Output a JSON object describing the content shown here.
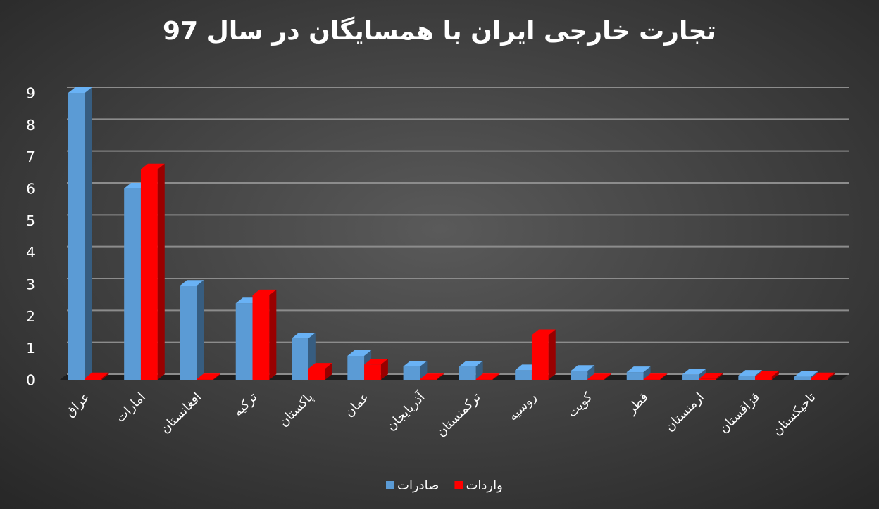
{
  "chart_data": {
    "type": "bar3d",
    "title": "تجارت خارجی ایران با همسایگان در سال 97",
    "categories": [
      "عراق",
      "امارات",
      "افغانستان",
      "ترکیه",
      "پاکستان",
      "عمان",
      "آذربایجان",
      "ترکمنستان",
      "روسیه",
      "کویت",
      "قطر",
      "ارمنستان",
      "قزاقستان",
      "تاجیکستان"
    ],
    "series": [
      {
        "name": "صادرات",
        "color": "#5b9bd5",
        "values": [
          9.0,
          6.0,
          2.95,
          2.4,
          1.3,
          0.75,
          0.42,
          0.42,
          0.3,
          0.28,
          0.24,
          0.17,
          0.13,
          0.09
        ]
      },
      {
        "name": "واردات",
        "color": "#ff0000",
        "values": [
          0.05,
          6.6,
          0.02,
          2.65,
          0.35,
          0.48,
          0.02,
          0.02,
          1.4,
          0.02,
          0.02,
          0.04,
          0.1,
          0.05
        ]
      }
    ],
    "ylim": [
      0,
      9
    ],
    "yticks": [
      0,
      1,
      2,
      3,
      4,
      5,
      6,
      7,
      8,
      9
    ],
    "grid": true,
    "legend": "bottom"
  }
}
